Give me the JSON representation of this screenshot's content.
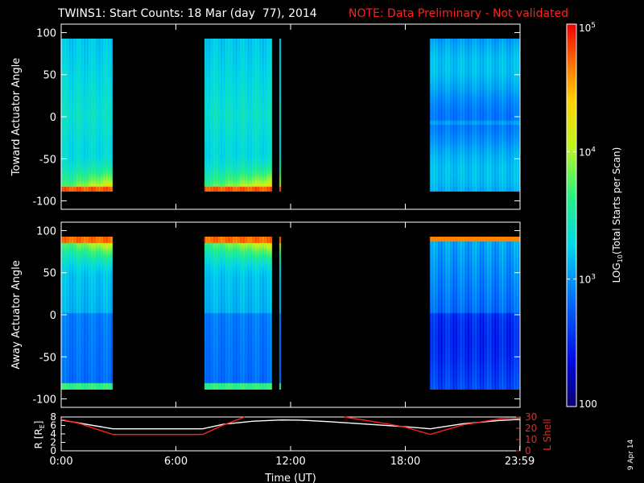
{
  "header": {
    "title": "TWINS1: Start Counts: 18 Mar (day  77), 2014",
    "note": "NOTE: Data Preliminary - Not validated",
    "title_color": "#ffffff",
    "note_color": "#ff2020"
  },
  "side_stamp": "9 Apr 14",
  "chart_data": [
    {
      "type": "heatmap",
      "name": "toward-panel",
      "ylabel": "Toward Actuator Angle",
      "ylim": [
        -110,
        110
      ],
      "yticks": [
        100,
        50,
        0,
        -50,
        -100
      ],
      "xlim_hours": [
        0,
        24
      ],
      "angle_range": [
        -90,
        90
      ],
      "data_intervals_hours": [
        [
          0.0,
          2.7
        ],
        [
          7.5,
          11.05
        ],
        [
          11.4,
          11.5
        ],
        [
          19.3,
          24.0
        ]
      ],
      "colormap": "rainbow",
      "log_scale": true
    },
    {
      "type": "heatmap",
      "name": "away-panel",
      "ylabel": "Away Actuator Angle",
      "ylim": [
        -110,
        110
      ],
      "yticks": [
        100,
        50,
        0,
        -50,
        -100
      ],
      "xlim_hours": [
        0,
        24
      ],
      "angle_range": [
        -90,
        90
      ],
      "data_intervals_hours": [
        [
          0.0,
          2.7
        ],
        [
          7.5,
          11.05
        ],
        [
          11.4,
          11.5
        ],
        [
          19.3,
          24.0
        ]
      ],
      "colormap": "rainbow",
      "log_scale": true
    },
    {
      "type": "line",
      "name": "orbit-panel",
      "ylabel_left": "R [R",
      "ylabel_left_sub": "E",
      "ylabel_left_close": "]",
      "ylabel_right": "L Shell",
      "ylim_left": [
        0,
        8
      ],
      "yticks_left": [
        "8",
        "6",
        "4",
        "2",
        "0"
      ],
      "ylim_right": [
        0,
        30
      ],
      "yticks_right": [
        "30",
        "20",
        "10",
        "0"
      ],
      "xlabel": "Time (UT)",
      "x_ticks": [
        {
          "hour": 0,
          "label": "0:00"
        },
        {
          "hour": 6,
          "label": "6:00"
        },
        {
          "hour": 12,
          "label": "12:00"
        },
        {
          "hour": 18,
          "label": "18:00"
        },
        {
          "hour": 23.983,
          "label": "23:59"
        }
      ],
      "series": [
        {
          "axis": "left",
          "color": "#ffffff",
          "x": [
            0.0,
            2.7,
            7.4,
            8.5,
            10.0,
            11.5,
            12.5,
            14.0,
            16.0,
            18.0,
            19.3,
            21.0,
            23.0,
            24.0
          ],
          "y": [
            7.3,
            5.2,
            5.2,
            6.3,
            7.0,
            7.3,
            7.25,
            6.9,
            6.3,
            5.7,
            5.2,
            6.4,
            7.2,
            7.4
          ]
        },
        {
          "axis": "right",
          "color": "#ff2020",
          "segments": [
            {
              "x": [
                0.0,
                1.0,
                2.7,
                7.4,
                8.5,
                9.6
              ],
              "y": [
                28.0,
                24.0,
                14.5,
                14.5,
                23.0,
                30.0
              ]
            },
            {
              "x": [
                14.8,
                16.5,
                18.0,
                19.3,
                21.0,
                23.0,
                24.0
              ],
              "y": [
                30.0,
                25.5,
                21.0,
                14.5,
                23.0,
                28.5,
                29.0
              ]
            }
          ]
        }
      ]
    },
    {
      "type": "heatmap",
      "name": "colorbar",
      "label_prefix": "LOG",
      "label_sub": "10",
      "label_suffix": "(Total Starts per Scan)",
      "range": [
        100,
        100000
      ],
      "ticks": [
        {
          "value": 100000,
          "base": "10",
          "exp": "5"
        },
        {
          "value": 10000,
          "base": "10",
          "exp": "4"
        },
        {
          "value": 1000,
          "base": "10",
          "exp": "3"
        },
        {
          "value": 100,
          "base": "100",
          "exp": ""
        }
      ]
    }
  ]
}
